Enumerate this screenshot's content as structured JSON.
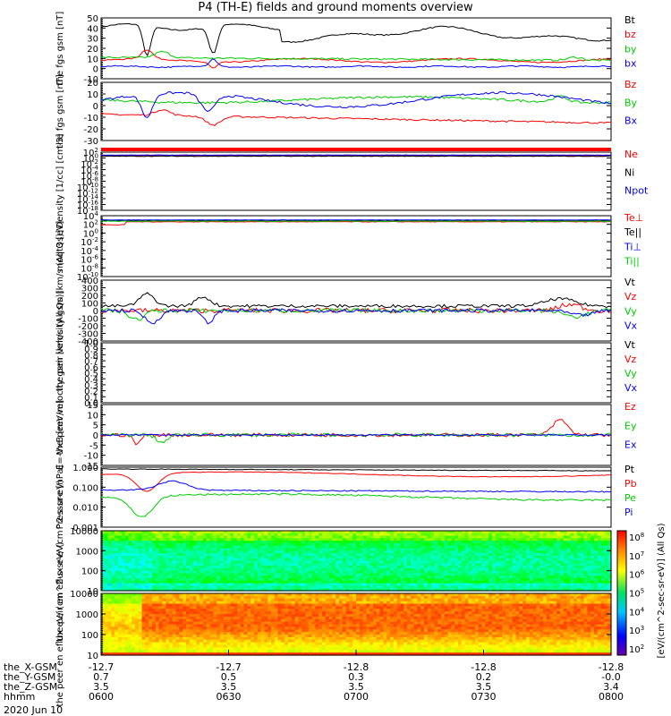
{
  "title": "P4 (TH-E) fields and ground moments overview",
  "date_label": "2020 Jun 10",
  "colorbar_label": "[eV/(cm^2-sec-sr-eV)] (All Qs)",
  "colorbar_ticks": [
    "10^8",
    "10^7",
    "10^6",
    "10^5",
    "10^4",
    "10^3",
    "10^2"
  ],
  "x_axis": {
    "row_labels": [
      "the_X-GSM",
      "the_Y-GSM",
      "the_Z-GSM",
      "hhmm"
    ],
    "columns": [
      {
        "x": "-12.7",
        "y": "0.7",
        "z": "3.5",
        "hhmm": "0600"
      },
      {
        "x": "-12.7",
        "y": "0.5",
        "z": "3.5",
        "hhmm": "0630"
      },
      {
        "x": "-12.8",
        "y": "0.3",
        "z": "3.5",
        "hhmm": "0700"
      },
      {
        "x": "-12.8",
        "y": "0.2",
        "z": "3.5",
        "hhmm": "0730"
      },
      {
        "x": "-12.8",
        "y": "-0.0",
        "z": "3.4",
        "hhmm": "0800"
      }
    ]
  },
  "chart_data": [
    {
      "type": "line",
      "ylabel": "the fgs gsm [nT]",
      "ylim": [
        -10,
        50
      ],
      "yticks": [
        "50",
        "40",
        "30",
        "20",
        "10",
        "0",
        "-10"
      ],
      "series": [
        {
          "name": "Bt",
          "color": "#000000"
        },
        {
          "name": "bz",
          "color": "#ff0000"
        },
        {
          "name": "by",
          "color": "#00cc00"
        },
        {
          "name": "bx",
          "color": "#0000ff"
        }
      ]
    },
    {
      "type": "line",
      "ylabel": "the fgs gsm [nT]",
      "ylim": [
        -30,
        20
      ],
      "yticks": [
        "20",
        "10",
        "0",
        "-10",
        "-20",
        "-30"
      ],
      "series": [
        {
          "name": "Bz",
          "color": "#ff0000"
        },
        {
          "name": "By",
          "color": "#00cc00"
        },
        {
          "name": "Bx",
          "color": "#0000ff"
        }
      ]
    },
    {
      "type": "line",
      "ylabel": "Density [1/cc] [cm-3]",
      "ylim": [
        -18,
        2
      ],
      "yticks": [
        "10^2",
        "10^0",
        "10^-2",
        "10^-4",
        "10^-6",
        "10^-8",
        "10^-10",
        "10^-12",
        "10^-14",
        "10^-16",
        "10^-18"
      ],
      "series": [
        {
          "name": "Ne",
          "color": "#ff0000"
        },
        {
          "name": "Ni",
          "color": "#000000"
        },
        {
          "name": "Npot",
          "color": "#0000ff"
        }
      ]
    },
    {
      "type": "line",
      "ylabel": "moqt3 [eV]",
      "ylim": [
        -10,
        4
      ],
      "yticks": [
        "10^4",
        "10^2",
        "10^0",
        "10^-2",
        "10^-4",
        "10^-6",
        "10^-8",
        "10^-10"
      ],
      "series": [
        {
          "name": "Te⊥",
          "color": "#ff0000"
        },
        {
          "name": "Te||",
          "color": "#000000"
        },
        {
          "name": "Ti⊥",
          "color": "#0000ff"
        },
        {
          "name": "Ti||",
          "color": "#00cc00"
        }
      ]
    },
    {
      "type": "line",
      "ylabel": "the peir velocity gsm [km/s (All Qs)]",
      "ylim": [
        -400,
        400
      ],
      "yticks": [
        "400",
        "300",
        "200",
        "100",
        "0",
        "-100",
        "-200",
        "-300",
        "-400"
      ],
      "series": [
        {
          "name": "Vt",
          "color": "#000000"
        },
        {
          "name": "Vz",
          "color": "#ff0000"
        },
        {
          "name": "Vy",
          "color": "#00cc00"
        },
        {
          "name": "Vx",
          "color": "#0000ff"
        }
      ]
    },
    {
      "type": "line",
      "ylabel": "the peer velocity gsm [km/s (All Qs)]",
      "ylim": [
        0,
        1
      ],
      "yticks": [
        "1.0",
        "0.9",
        "0.8",
        "0.7",
        "0.6",
        "0.5",
        "0.4",
        "0.3",
        "0.2",
        "0.1",
        "0.0"
      ],
      "series": [
        {
          "name": "Vt",
          "color": "#000000"
        },
        {
          "name": "Vz",
          "color": "#ff0000"
        },
        {
          "name": "Vy",
          "color": "#00cc00"
        },
        {
          "name": "Vx",
          "color": "#0000ff"
        }
      ]
    },
    {
      "type": "line",
      "ylabel": "E=-VxB [mV/m]",
      "ylim": [
        -15,
        15
      ],
      "yticks": [
        "15",
        "10",
        "5",
        "0",
        "-5",
        "-10",
        "-15"
      ],
      "series": [
        {
          "name": "Ez",
          "color": "#ff0000"
        },
        {
          "name": "Ey",
          "color": "#00cc00"
        },
        {
          "name": "Ex",
          "color": "#0000ff"
        }
      ]
    },
    {
      "type": "line",
      "ylabel": "Pressure [nPa]",
      "ylim": [
        0.001,
        1
      ],
      "yticks": [
        "1.000",
        "0.100",
        "0.010",
        "0.001"
      ],
      "series": [
        {
          "name": "Pt",
          "color": "#000000"
        },
        {
          "name": "Pb",
          "color": "#ff0000"
        },
        {
          "name": "Pe",
          "color": "#00cc00"
        },
        {
          "name": "Pi",
          "color": "#0000ff"
        }
      ]
    },
    {
      "type": "heatmap",
      "ylabel": "the peir en eflux eV/ (cm^2-s-sr-eV)",
      "ylim": [
        10,
        20000
      ],
      "yticks": [
        "10000",
        "1000",
        "100",
        "10"
      ]
    },
    {
      "type": "heatmap",
      "ylabel": "the peer en eflux eV/ (cm^2-s-sr-eV)",
      "ylim": [
        10,
        20000
      ],
      "yticks": [
        "10000",
        "1000",
        "100",
        "10"
      ]
    }
  ]
}
